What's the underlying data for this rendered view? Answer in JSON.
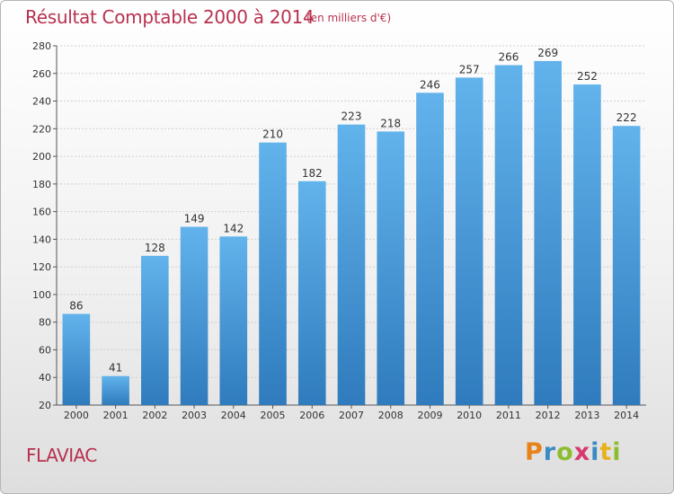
{
  "title": "Résultat Comptable 2000 à 2014",
  "unit": "(en milliers d'€)",
  "commune": "FLAVIAC",
  "logo": {
    "letters": [
      "P",
      "r",
      "o",
      "x",
      "i",
      "t",
      "i"
    ],
    "colors": [
      "#e8821a",
      "#3b8ac4",
      "#8cbd2f",
      "#d83a6e",
      "#3b8ac4",
      "#e8b21a",
      "#8cbd2f"
    ]
  },
  "colors": {
    "bar": "#4f9edd",
    "bar_light": "#62b3ec",
    "bar_dark": "#2f7bbd",
    "accent": "#b8314f"
  },
  "chart_data": {
    "type": "bar",
    "title": "Résultat Comptable 2000 à 2014",
    "categories": [
      "2000",
      "2001",
      "2002",
      "2003",
      "2004",
      "2005",
      "2006",
      "2007",
      "2008",
      "2009",
      "2010",
      "2011",
      "2012",
      "2013",
      "2014"
    ],
    "values": [
      86,
      41,
      128,
      149,
      142,
      210,
      182,
      223,
      218,
      246,
      257,
      266,
      269,
      252,
      222
    ],
    "ylim": [
      20,
      280
    ],
    "yticks": [
      20,
      40,
      60,
      80,
      100,
      120,
      140,
      160,
      180,
      200,
      220,
      240,
      260,
      280
    ],
    "grid": true,
    "xlabel": "",
    "ylabel": ""
  }
}
